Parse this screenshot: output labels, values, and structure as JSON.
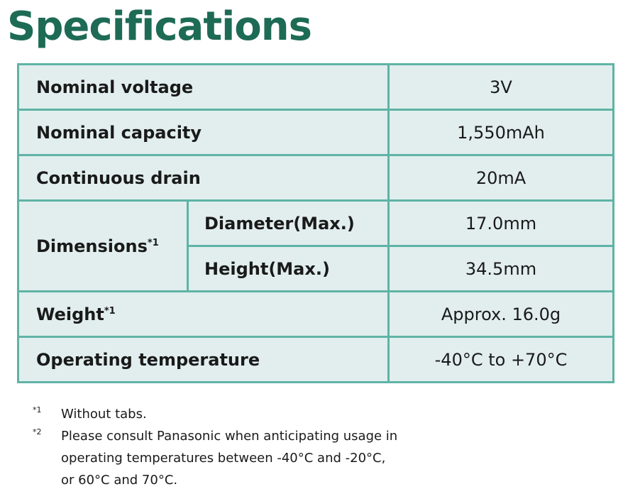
{
  "title": "Specifications",
  "rows": {
    "nominal_voltage": {
      "label": "Nominal voltage",
      "value": "3V"
    },
    "nominal_capacity": {
      "label": "Nominal capacity",
      "value": "1,550mAh"
    },
    "continuous_drain": {
      "label": "Continuous drain",
      "value": "20mA"
    },
    "dimensions": {
      "label": "Dimensions",
      "mark": "*1",
      "diameter": {
        "label": "Diameter(Max.)",
        "value": "17.0mm"
      },
      "height": {
        "label": "Height(Max.)",
        "value": "34.5mm"
      }
    },
    "weight": {
      "label": "Weight",
      "mark": "*1",
      "value": "Approx. 16.0g"
    },
    "operating_temperature": {
      "label": "Operating temperature",
      "value": "-40°C to +70°C"
    }
  },
  "notes": [
    {
      "mark": "*1",
      "text": "Without tabs."
    },
    {
      "mark": "*2",
      "text": "Please consult Panasonic when anticipating usage in\noperating temperatures between -40°C and -20°C,\nor 60°C and 70°C."
    }
  ]
}
